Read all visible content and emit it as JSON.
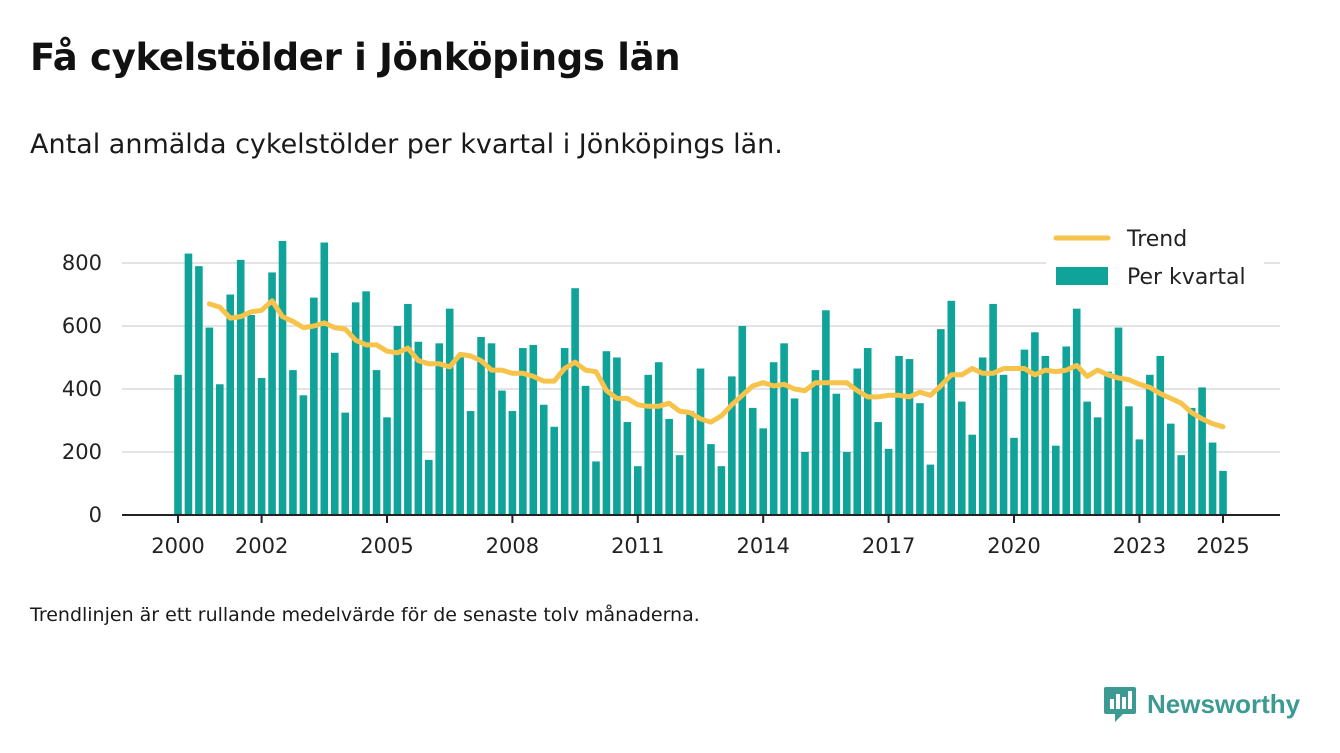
{
  "header": {
    "title": "Få cykelstölder i Jönköpings län",
    "subtitle": "Antal anmälda cykelstölder per kvartal i Jönköpings län."
  },
  "footer": {
    "note": "Trendlinjen är ett rullande medelvärde för de senaste tolv månaderna.",
    "brand": "Newsworthy",
    "brand_icon": "newsworthy-logo-icon"
  },
  "colors": {
    "bars": "#0fa39a",
    "trend": "#f7c34a",
    "grid": "#dcdcdc",
    "axis": "#222222",
    "brand": "#3d9a92"
  },
  "chart_data": {
    "type": "bar",
    "x_start": "2000-Q1",
    "x_ticks": [
      "2000",
      "2002",
      "2005",
      "2008",
      "2011",
      "2014",
      "2017",
      "2020",
      "2023",
      "2025"
    ],
    "y_ticks": [
      "0",
      "200",
      "400",
      "600",
      "800"
    ],
    "ylim": [
      0,
      900
    ],
    "grid": true,
    "legend": {
      "placement": "top-right",
      "items": [
        "Trend",
        "Per kvartal"
      ]
    },
    "series": [
      {
        "name": "Per kvartal",
        "type": "bar",
        "values": [
          445,
          830,
          790,
          595,
          415,
          700,
          810,
          635,
          435,
          770,
          870,
          460,
          380,
          690,
          865,
          515,
          325,
          675,
          710,
          460,
          310,
          600,
          670,
          550,
          175,
          545,
          655,
          500,
          330,
          565,
          545,
          395,
          330,
          530,
          540,
          350,
          280,
          530,
          720,
          410,
          170,
          520,
          500,
          295,
          155,
          445,
          485,
          305,
          190,
          330,
          465,
          225,
          155,
          440,
          600,
          340,
          275,
          485,
          545,
          370,
          200,
          460,
          650,
          385,
          200,
          465,
          530,
          295,
          210,
          505,
          495,
          355,
          160,
          590,
          680,
          360,
          255,
          500,
          670,
          445,
          245,
          525,
          580,
          505,
          220,
          535,
          655,
          360,
          310,
          455,
          595,
          345,
          240,
          445,
          505,
          290,
          190,
          340,
          405,
          230,
          140
        ]
      },
      {
        "name": "Trend",
        "type": "line",
        "start_index": 3,
        "values": [
          670,
          660,
          625,
          630,
          645,
          650,
          680,
          630,
          615,
          595,
          600,
          610,
          595,
          590,
          555,
          540,
          540,
          520,
          515,
          530,
          490,
          480,
          480,
          470,
          510,
          505,
          490,
          460,
          460,
          450,
          450,
          440,
          425,
          425,
          465,
          485,
          460,
          455,
          395,
          370,
          370,
          350,
          345,
          345,
          355,
          330,
          325,
          305,
          295,
          315,
          350,
          380,
          410,
          420,
          410,
          415,
          400,
          395,
          420,
          420,
          420,
          420,
          395,
          375,
          375,
          380,
          380,
          375,
          390,
          380,
          410,
          445,
          445,
          465,
          450,
          450,
          465,
          465,
          465,
          445,
          460,
          455,
          460,
          475,
          440,
          460,
          445,
          435,
          430,
          415,
          405,
          385,
          370,
          355,
          325,
          305,
          290,
          280
        ]
      }
    ]
  }
}
